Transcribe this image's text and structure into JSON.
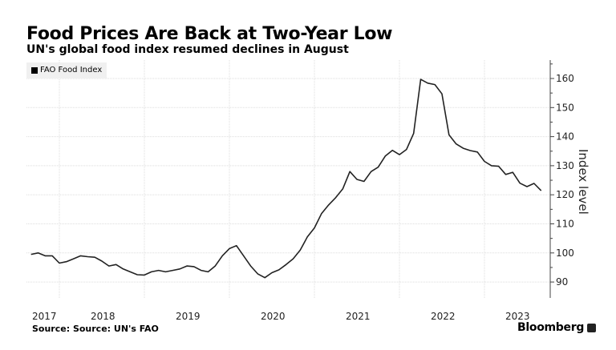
{
  "header": {
    "title": "Food Prices Are Back at Two-Year Low",
    "subtitle": "UN's global food index resumed declines in August"
  },
  "footer": {
    "source": "Source: Source: UN's FAO",
    "brand": "Bloomberg"
  },
  "chart_data": {
    "type": "line",
    "title": "Food Prices Are Back at Two-Year Low",
    "subtitle": "UN's global food index resumed declines in August",
    "ylabel": "Index level",
    "xlabel": "",
    "ylim": [
      84,
      166
    ],
    "yticks": [
      90,
      100,
      110,
      120,
      130,
      140,
      150,
      160
    ],
    "xticks": [
      "2017",
      "2018",
      "2019",
      "2020",
      "2021",
      "2022",
      "2023"
    ],
    "grid": true,
    "legend_placement": "top-left",
    "line_color": "#222222",
    "start_month": "2017-09",
    "series": [
      {
        "name": "FAO Food Index",
        "values": [
          99.5,
          100.0,
          99.0,
          99.0,
          96.5,
          97.0,
          98.0,
          99.0,
          98.7,
          98.5,
          97.2,
          95.5,
          96.0,
          94.5,
          93.5,
          92.5,
          92.4,
          93.5,
          94.0,
          93.5,
          94.0,
          94.5,
          95.5,
          95.3,
          94.0,
          93.5,
          95.5,
          99.0,
          101.5,
          102.5,
          99.0,
          95.5,
          92.8,
          91.5,
          93.2,
          94.2,
          96.0,
          98.0,
          101.0,
          105.5,
          108.6,
          113.5,
          116.5,
          119.0,
          122.0,
          128.0,
          125.3,
          124.6,
          128.0,
          129.5,
          133.3,
          135.3,
          133.8,
          135.6,
          141.1,
          159.7,
          158.4,
          157.9,
          154.7,
          140.6,
          137.5,
          136.0,
          135.2,
          134.7,
          131.5,
          130.0,
          129.8,
          127.0,
          127.7,
          124.0,
          122.8,
          123.9,
          121.4
        ]
      }
    ]
  }
}
